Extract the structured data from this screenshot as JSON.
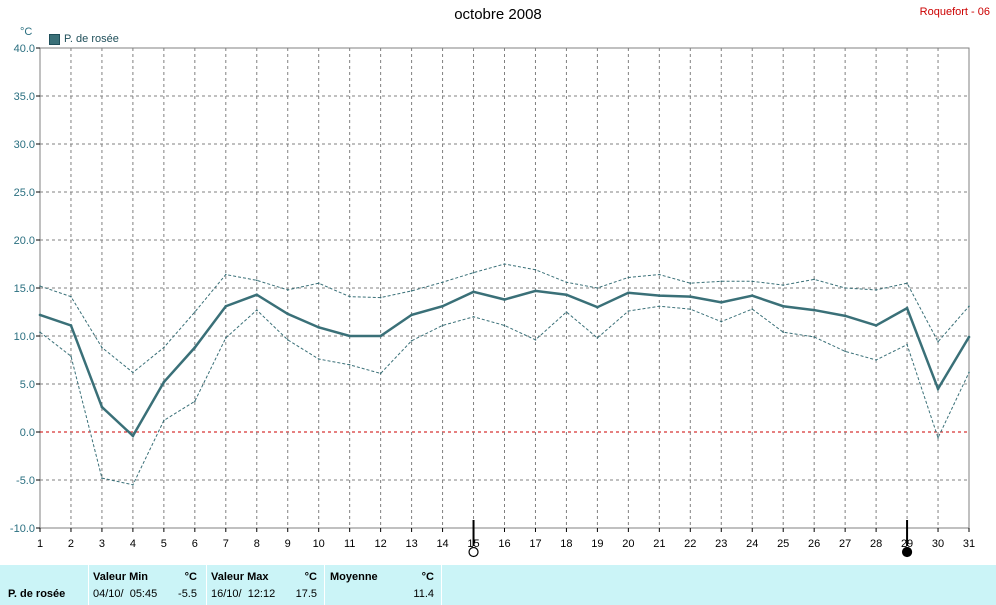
{
  "header": {
    "title": "octobre 2008",
    "station": "Roquefort - 06",
    "unit": "°C"
  },
  "legend": {
    "label": "P. de rosée",
    "color": "#3a7078"
  },
  "chart_data": {
    "type": "line",
    "title": "octobre 2008",
    "ylabel": "°C",
    "ylim": [
      -10,
      40
    ],
    "yticks": [
      "40.0",
      "35.0",
      "30.0",
      "25.0",
      "20.0",
      "15.0",
      "10.0",
      "5.0",
      "0.0",
      "-5.0",
      "-10.0"
    ],
    "ytick_values": [
      40,
      35,
      30,
      25,
      20,
      15,
      10,
      5,
      0,
      -5,
      -10
    ],
    "x": [
      1,
      2,
      3,
      4,
      5,
      6,
      7,
      8,
      9,
      10,
      11,
      12,
      13,
      14,
      15,
      16,
      17,
      18,
      19,
      20,
      21,
      22,
      23,
      24,
      25,
      26,
      27,
      28,
      29,
      30,
      31
    ],
    "xticks": [
      "1",
      "2",
      "3",
      "4",
      "5",
      "6",
      "7",
      "8",
      "9",
      "10",
      "11",
      "12",
      "13",
      "14",
      "15",
      "16",
      "17",
      "18",
      "19",
      "20",
      "21",
      "22",
      "23",
      "24",
      "25",
      "26",
      "27",
      "28",
      "29",
      "30",
      "31"
    ],
    "grid": true,
    "legend_position": "top-left",
    "zero_line_color": "#cc0000",
    "moon_phases": [
      {
        "day": 15,
        "phase": "full-moon"
      },
      {
        "day": 29,
        "phase": "new-moon"
      }
    ],
    "series": [
      {
        "name": "P. de rosée",
        "style": "solid",
        "color": "#3a7078",
        "values": [
          12.2,
          11.1,
          2.6,
          -0.4,
          5.2,
          8.8,
          13.1,
          14.3,
          12.3,
          10.9,
          10.0,
          10.0,
          12.2,
          13.1,
          14.6,
          13.8,
          14.7,
          14.3,
          13.0,
          14.5,
          14.2,
          14.1,
          13.5,
          14.2,
          13.1,
          12.7,
          12.1,
          11.1,
          12.9,
          4.5,
          9.9
        ]
      },
      {
        "style": "dashed",
        "color": "#3a7078",
        "values": [
          15.2,
          14.1,
          8.8,
          6.2,
          8.8,
          12.5,
          16.4,
          15.8,
          14.8,
          15.5,
          14.1,
          14.0,
          14.7,
          15.6,
          16.6,
          17.5,
          16.9,
          15.6,
          15.0,
          16.1,
          16.4,
          15.5,
          15.7,
          15.7,
          15.3,
          15.9,
          15.0,
          14.8,
          15.5,
          9.4,
          13.1
        ]
      },
      {
        "style": "dashed",
        "color": "#3a7078",
        "values": [
          10.4,
          7.9,
          -4.8,
          -5.5,
          1.2,
          3.2,
          9.8,
          12.7,
          9.6,
          7.6,
          7.0,
          6.1,
          9.5,
          11.1,
          12.0,
          11.1,
          9.6,
          12.5,
          9.8,
          12.6,
          13.1,
          12.8,
          11.5,
          12.8,
          10.4,
          9.9,
          8.4,
          7.5,
          9.1,
          -0.6,
          6.2
        ]
      }
    ]
  },
  "summary": {
    "series_label": "P. de rosée",
    "min": {
      "header": "Valeur Min",
      "unit": "°C",
      "date": "04/10/  05:45",
      "value": "-5.5"
    },
    "max": {
      "header": "Valeur Max",
      "unit": "°C",
      "date": "16/10/  12:12",
      "value": "17.5"
    },
    "avg": {
      "header": "Moyenne",
      "unit": "°C",
      "value": "11.4"
    }
  }
}
